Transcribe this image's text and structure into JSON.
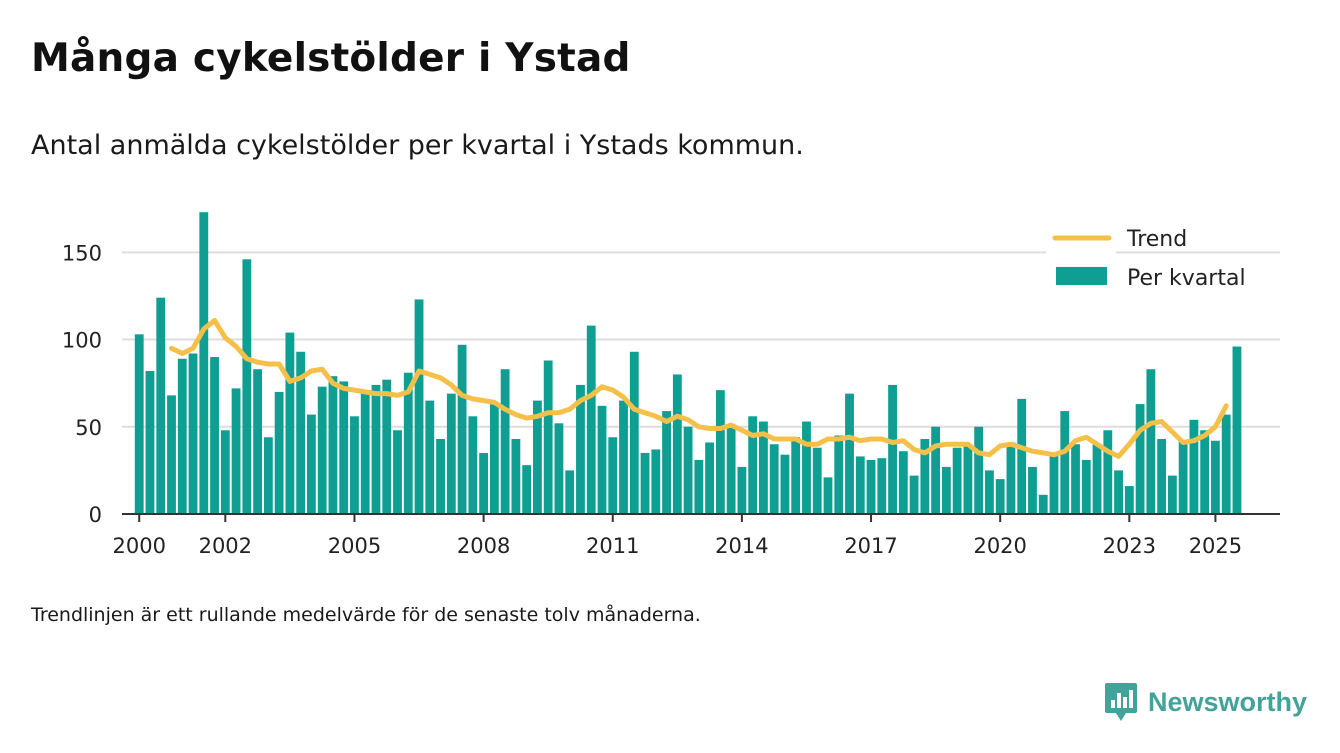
{
  "header": {
    "title": "Många cykelstölder i Ystad",
    "subtitle": "Antal anmälda cykelstölder per kvartal i Ystads kommun."
  },
  "footer": {
    "note": "Trendlinjen är ett rullande medelvärde för de senaste tolv månaderna.",
    "brand": "Newsworthy"
  },
  "colors": {
    "bar": "#0f9e92",
    "trend": "#f5c04a",
    "grid": "#dddddd",
    "brand": "#42a39a"
  },
  "chart_data": {
    "type": "bar",
    "title": "Många cykelstölder i Ystad",
    "subtitle": "Antal anmälda cykelstölder per kvartal i Ystads kommun.",
    "xlabel": "",
    "ylabel": "",
    "ylim": [
      0,
      180
    ],
    "yticks": [
      0,
      50,
      100,
      150
    ],
    "xlim": [
      1999.6,
      2026.5
    ],
    "xticks": [
      {
        "year": 2000,
        "label": "2000"
      },
      {
        "year": 2002,
        "label": "2002"
      },
      {
        "year": 2005,
        "label": "2005"
      },
      {
        "year": 2008,
        "label": "2008"
      },
      {
        "year": 2011,
        "label": "2011"
      },
      {
        "year": 2014,
        "label": "2014"
      },
      {
        "year": 2017,
        "label": "2017"
      },
      {
        "year": 2020,
        "label": "2020"
      },
      {
        "year": 2023,
        "label": "2023"
      },
      {
        "year": 2025,
        "label": "2025"
      }
    ],
    "start_year": 2000,
    "legend_position": "top-right",
    "grid": true,
    "series": [
      {
        "name": "Per kvartal",
        "type": "bar",
        "values": [
          103,
          82,
          124,
          68,
          89,
          92,
          173,
          90,
          48,
          72,
          146,
          83,
          44,
          70,
          104,
          93,
          57,
          73,
          79,
          76,
          56,
          71,
          74,
          77,
          48,
          81,
          123,
          65,
          43,
          69,
          97,
          56,
          35,
          63,
          83,
          43,
          28,
          65,
          88,
          52,
          25,
          74,
          108,
          62,
          44,
          65,
          93,
          35,
          37,
          59,
          80,
          50,
          31,
          41,
          71,
          51,
          27,
          56,
          53,
          40,
          34,
          44,
          53,
          38,
          21,
          45,
          69,
          33,
          31,
          32,
          74,
          36,
          22,
          43,
          50,
          27,
          38,
          39,
          50,
          25,
          20,
          41,
          66,
          27,
          11,
          35,
          59,
          40,
          31,
          40,
          48,
          25,
          16,
          63,
          83,
          43,
          22,
          42,
          54,
          48,
          42,
          57,
          96
        ]
      },
      {
        "name": "Trend",
        "type": "line",
        "start_index": 3,
        "values": [
          95,
          92,
          95,
          106,
          111,
          101,
          96,
          89,
          87,
          86,
          86,
          76,
          78,
          82,
          83,
          75,
          72,
          71,
          70,
          69,
          69,
          68,
          70,
          82,
          80,
          78,
          74,
          68,
          66,
          65,
          64,
          60,
          57,
          55,
          56,
          58,
          58,
          60,
          65,
          68,
          73,
          71,
          67,
          60,
          58,
          56,
          53,
          56,
          54,
          50,
          49,
          49,
          51,
          48,
          45,
          46,
          43,
          43,
          43,
          40,
          40,
          43,
          43,
          44,
          42,
          43,
          43,
          41,
          42,
          37,
          35,
          39,
          40,
          40,
          40,
          35,
          34,
          39,
          40,
          38,
          36,
          35,
          34,
          36,
          42,
          44,
          40,
          36,
          33,
          40,
          48,
          52,
          53,
          47,
          41,
          42,
          45,
          50,
          62
        ]
      }
    ]
  }
}
